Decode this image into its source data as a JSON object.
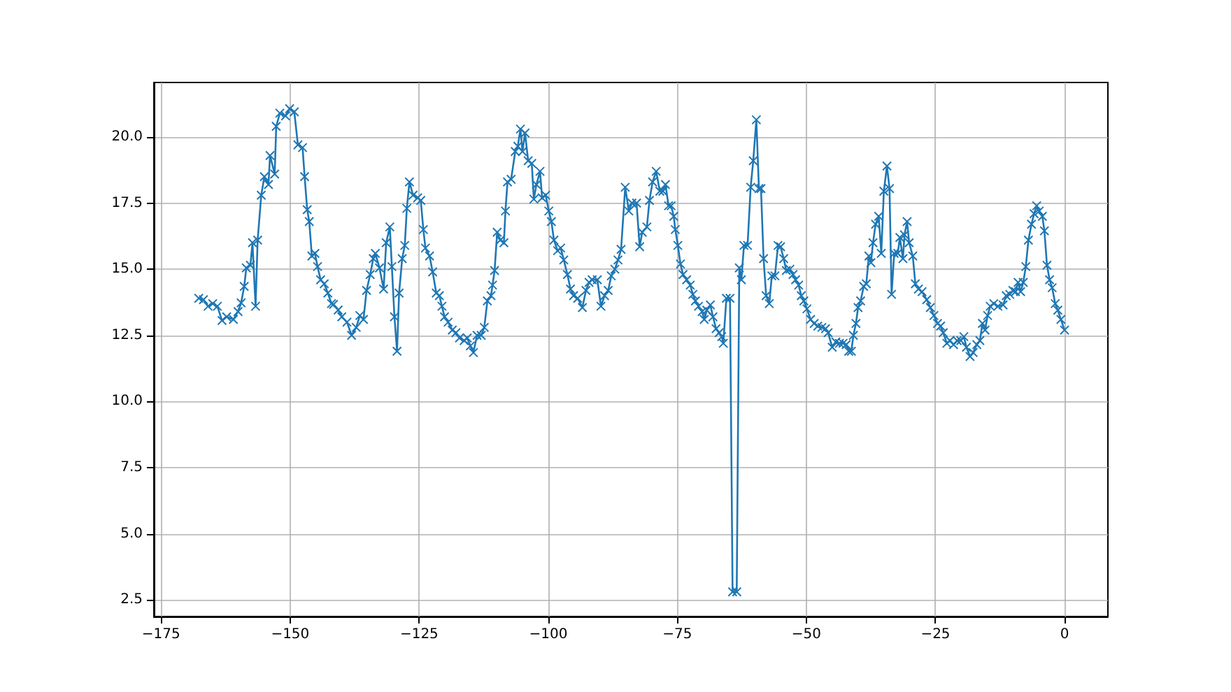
{
  "chart_data": {
    "type": "line",
    "color": "#1f77b4",
    "marker": "cross",
    "grid": true,
    "xlim": [
      -176.4,
      8.4
    ],
    "ylim": [
      1.87,
      22.06
    ],
    "xticks": [
      {
        "value": -175,
        "label": "−175"
      },
      {
        "value": -150,
        "label": "−150"
      },
      {
        "value": -125,
        "label": "−125"
      },
      {
        "value": -100,
        "label": "−100"
      },
      {
        "value": -75,
        "label": "−75"
      },
      {
        "value": -50,
        "label": "−50"
      },
      {
        "value": -25,
        "label": "−25"
      },
      0
    ],
    "yticks": [
      {
        "value": 2.5,
        "label": "2.5"
      },
      {
        "value": 5,
        "label": "5.0"
      },
      {
        "value": 7.5,
        "label": "7.5"
      },
      {
        "value": 10,
        "label": "10.0"
      },
      {
        "value": 12.5,
        "label": "12.5"
      },
      {
        "value": 15,
        "label": "15.0"
      },
      {
        "value": 17.5,
        "label": "17.5"
      },
      {
        "value": 20,
        "label": "20.0"
      }
    ],
    "x": [
      -167.7,
      -166.8,
      -165.9,
      -165.0,
      -164.1,
      -163.2,
      -162.3,
      -161.0,
      -160.1,
      -159.5,
      -158.9,
      -158.5,
      -157.7,
      -157.3,
      -156.7,
      -156.3,
      -155.6,
      -155.0,
      -154.2,
      -153.9,
      -153.0,
      -152.7,
      -152.0,
      -150.9,
      -150.1,
      -149.2,
      -148.5,
      -147.6,
      -147.2,
      -146.7,
      -146.3,
      -145.8,
      -145.2,
      -144.7,
      -144.1,
      -143.4,
      -142.7,
      -142.0,
      -141.6,
      -140.7,
      -140.0,
      -139.0,
      -138.1,
      -137.2,
      -136.5,
      -135.8,
      -135.2,
      -134.5,
      -133.9,
      -133.5,
      -132.7,
      -131.9,
      -131.4,
      -130.7,
      -130.3,
      -129.8,
      -129.3,
      -128.9,
      -128.3,
      -127.8,
      -127.4,
      -126.9,
      -126.2,
      -125.3,
      -124.7,
      -124.2,
      -123.8,
      -123.0,
      -122.4,
      -121.7,
      -121.1,
      -120.6,
      -120.1,
      -119.4,
      -118.6,
      -117.9,
      -117.2,
      -116.3,
      -115.7,
      -115.1,
      -114.5,
      -113.8,
      -113.0,
      -112.4,
      -111.8,
      -111.1,
      -110.8,
      -110.4,
      -109.9,
      -109.3,
      -108.6,
      -108.3,
      -107.9,
      -107.2,
      -106.4,
      -105.9,
      -105.4,
      -105.0,
      -104.5,
      -103.9,
      -103.2,
      -102.8,
      -102.3,
      -101.6,
      -101.2,
      -100.5,
      -99.9,
      -99.4,
      -98.9,
      -98.2,
      -97.6,
      -97.0,
      -96.3,
      -95.7,
      -95.1,
      -94.3,
      -93.4,
      -92.7,
      -92.1,
      -91.5,
      -90.5,
      -89.8,
      -89.1,
      -88.4,
      -87.8,
      -87.1,
      -86.5,
      -85.9,
      -85.1,
      -84.4,
      -83.8,
      -82.9,
      -82.3,
      -81.8,
      -80.9,
      -80.4,
      -79.8,
      -79.1,
      -78.4,
      -77.8,
      -77.3,
      -76.7,
      -76.2,
      -75.7,
      -75.4,
      -74.9,
      -74.4,
      -73.9,
      -73.2,
      -72.5,
      -72.0,
      -71.5,
      -70.9,
      -70.2,
      -69.8,
      -69.3,
      -68.6,
      -68.1,
      -67.5,
      -66.9,
      -66.4,
      -66.1,
      -65.5,
      -64.8,
      -64.3,
      -63.5,
      -63.0,
      -62.6,
      -62.1,
      -61.4,
      -60.8,
      -60.3,
      -59.7,
      -59.2,
      -58.8,
      -58.3,
      -57.8,
      -57.2,
      -56.7,
      -56.1,
      -55.5,
      -55.0,
      -54.4,
      -53.9,
      -53.2,
      -52.6,
      -52.1,
      -51.5,
      -51.0,
      -50.5,
      -49.9,
      -49.2,
      -48.5,
      -47.8,
      -47.0,
      -46.3,
      -45.8,
      -45.0,
      -44.3,
      -43.6,
      -42.9,
      -42.3,
      -41.8,
      -41.3,
      -40.9,
      -40.4,
      -40.0,
      -39.5,
      -38.9,
      -38.4,
      -37.9,
      -37.5,
      -37.1,
      -36.6,
      -36.0,
      -35.5,
      -35.0,
      -34.4,
      -33.9,
      -33.5,
      -33.0,
      -32.3,
      -31.9,
      -31.3,
      -31.0,
      -30.5,
      -30.1,
      -29.4,
      -28.9,
      -28.3,
      -27.6,
      -26.7,
      -26.0,
      -25.3,
      -24.6,
      -24.0,
      -23.5,
      -22.8,
      -22.2,
      -21.5,
      -20.8,
      -20.1,
      -19.5,
      -19.0,
      -18.3,
      -17.7,
      -17.0,
      -16.4,
      -15.9,
      -15.4,
      -14.9,
      -14.4,
      -13.7,
      -12.9,
      -11.9,
      -11.3,
      -10.6,
      -10.0,
      -9.5,
      -9.0,
      -8.5,
      -8.0,
      -7.5,
      -7.0,
      -6.4,
      -5.9,
      -5.4,
      -4.9,
      -4.3,
      -3.9,
      -3.4,
      -2.9,
      -2.4,
      -1.8,
      -1.3,
      -0.7,
      0
    ],
    "values": [
      13.9,
      13.85,
      13.6,
      13.7,
      13.6,
      13.06,
      13.2,
      13.1,
      13.4,
      13.73,
      14.35,
      15.05,
      15.15,
      16.0,
      13.6,
      16.1,
      17.8,
      18.5,
      18.2,
      19.3,
      18.6,
      20.4,
      20.9,
      20.8,
      21.07,
      20.95,
      19.7,
      19.6,
      18.5,
      17.25,
      16.8,
      15.5,
      15.6,
      15.1,
      14.6,
      14.45,
      14.1,
      13.7,
      13.67,
      13.46,
      13.2,
      13.0,
      12.5,
      12.8,
      13.25,
      13.1,
      14.2,
      14.8,
      15.4,
      15.6,
      15.05,
      14.25,
      16.0,
      16.6,
      15.1,
      13.2,
      11.9,
      14.1,
      15.4,
      15.9,
      17.3,
      18.3,
      17.8,
      17.7,
      17.6,
      16.5,
      15.8,
      15.5,
      14.9,
      14.1,
      14.0,
      13.6,
      13.2,
      13.0,
      12.7,
      12.6,
      12.4,
      12.3,
      12.4,
      12.1,
      11.85,
      12.5,
      12.5,
      12.8,
      13.8,
      14.0,
      14.4,
      14.95,
      16.4,
      16.1,
      16.0,
      17.2,
      18.3,
      18.4,
      19.45,
      19.65,
      20.3,
      19.45,
      20.15,
      19.1,
      19.0,
      17.65,
      18.2,
      18.7,
      17.7,
      17.8,
      17.2,
      16.8,
      16.1,
      15.7,
      15.8,
      15.35,
      14.8,
      14.25,
      14.0,
      13.9,
      13.55,
      14.2,
      14.5,
      14.6,
      14.6,
      13.6,
      14.0,
      14.2,
      14.75,
      15.0,
      15.35,
      15.75,
      18.1,
      17.2,
      17.5,
      17.5,
      15.85,
      16.4,
      16.6,
      17.6,
      18.3,
      18.7,
      17.95,
      17.95,
      18.2,
      17.4,
      17.4,
      17.0,
      16.5,
      15.9,
      15.2,
      14.8,
      14.6,
      14.4,
      14.05,
      13.8,
      13.6,
      13.4,
      13.1,
      13.45,
      13.65,
      13.2,
      12.75,
      12.6,
      12.45,
      12.2,
      13.9,
      13.9,
      2.8,
      2.8,
      15.05,
      14.6,
      15.9,
      15.9,
      18.1,
      19.1,
      20.65,
      18.05,
      18.05,
      15.4,
      14.0,
      13.7,
      14.75,
      14.75,
      15.9,
      15.85,
      15.4,
      14.95,
      15.0,
      14.8,
      14.6,
      14.4,
      14.0,
      13.8,
      13.5,
      13.1,
      12.95,
      12.85,
      12.8,
      12.75,
      12.6,
      12.05,
      12.25,
      12.2,
      12.2,
      12.15,
      11.9,
      11.9,
      12.5,
      12.95,
      13.55,
      13.8,
      14.35,
      14.45,
      15.5,
      15.25,
      16.0,
      16.7,
      17.0,
      15.6,
      17.95,
      18.9,
      18.05,
      14.05,
      15.6,
      15.6,
      16.2,
      15.4,
      16.3,
      16.8,
      16.0,
      15.5,
      14.45,
      14.25,
      14.15,
      13.85,
      13.55,
      13.25,
      12.95,
      12.85,
      12.6,
      12.2,
      12.3,
      12.15,
      12.3,
      12.3,
      12.45,
      12.05,
      11.7,
      11.85,
      12.15,
      12.3,
      12.95,
      12.7,
      13.25,
      13.6,
      13.7,
      13.6,
      13.65,
      14.0,
      14.05,
      14.2,
      14.15,
      14.5,
      14.15,
      14.5,
      15.1,
      16.1,
      16.7,
      17.1,
      17.4,
      17.2,
      17.0,
      16.45,
      15.15,
      14.6,
      14.3,
      13.7,
      13.45,
      13.1,
      12.7
    ]
  }
}
